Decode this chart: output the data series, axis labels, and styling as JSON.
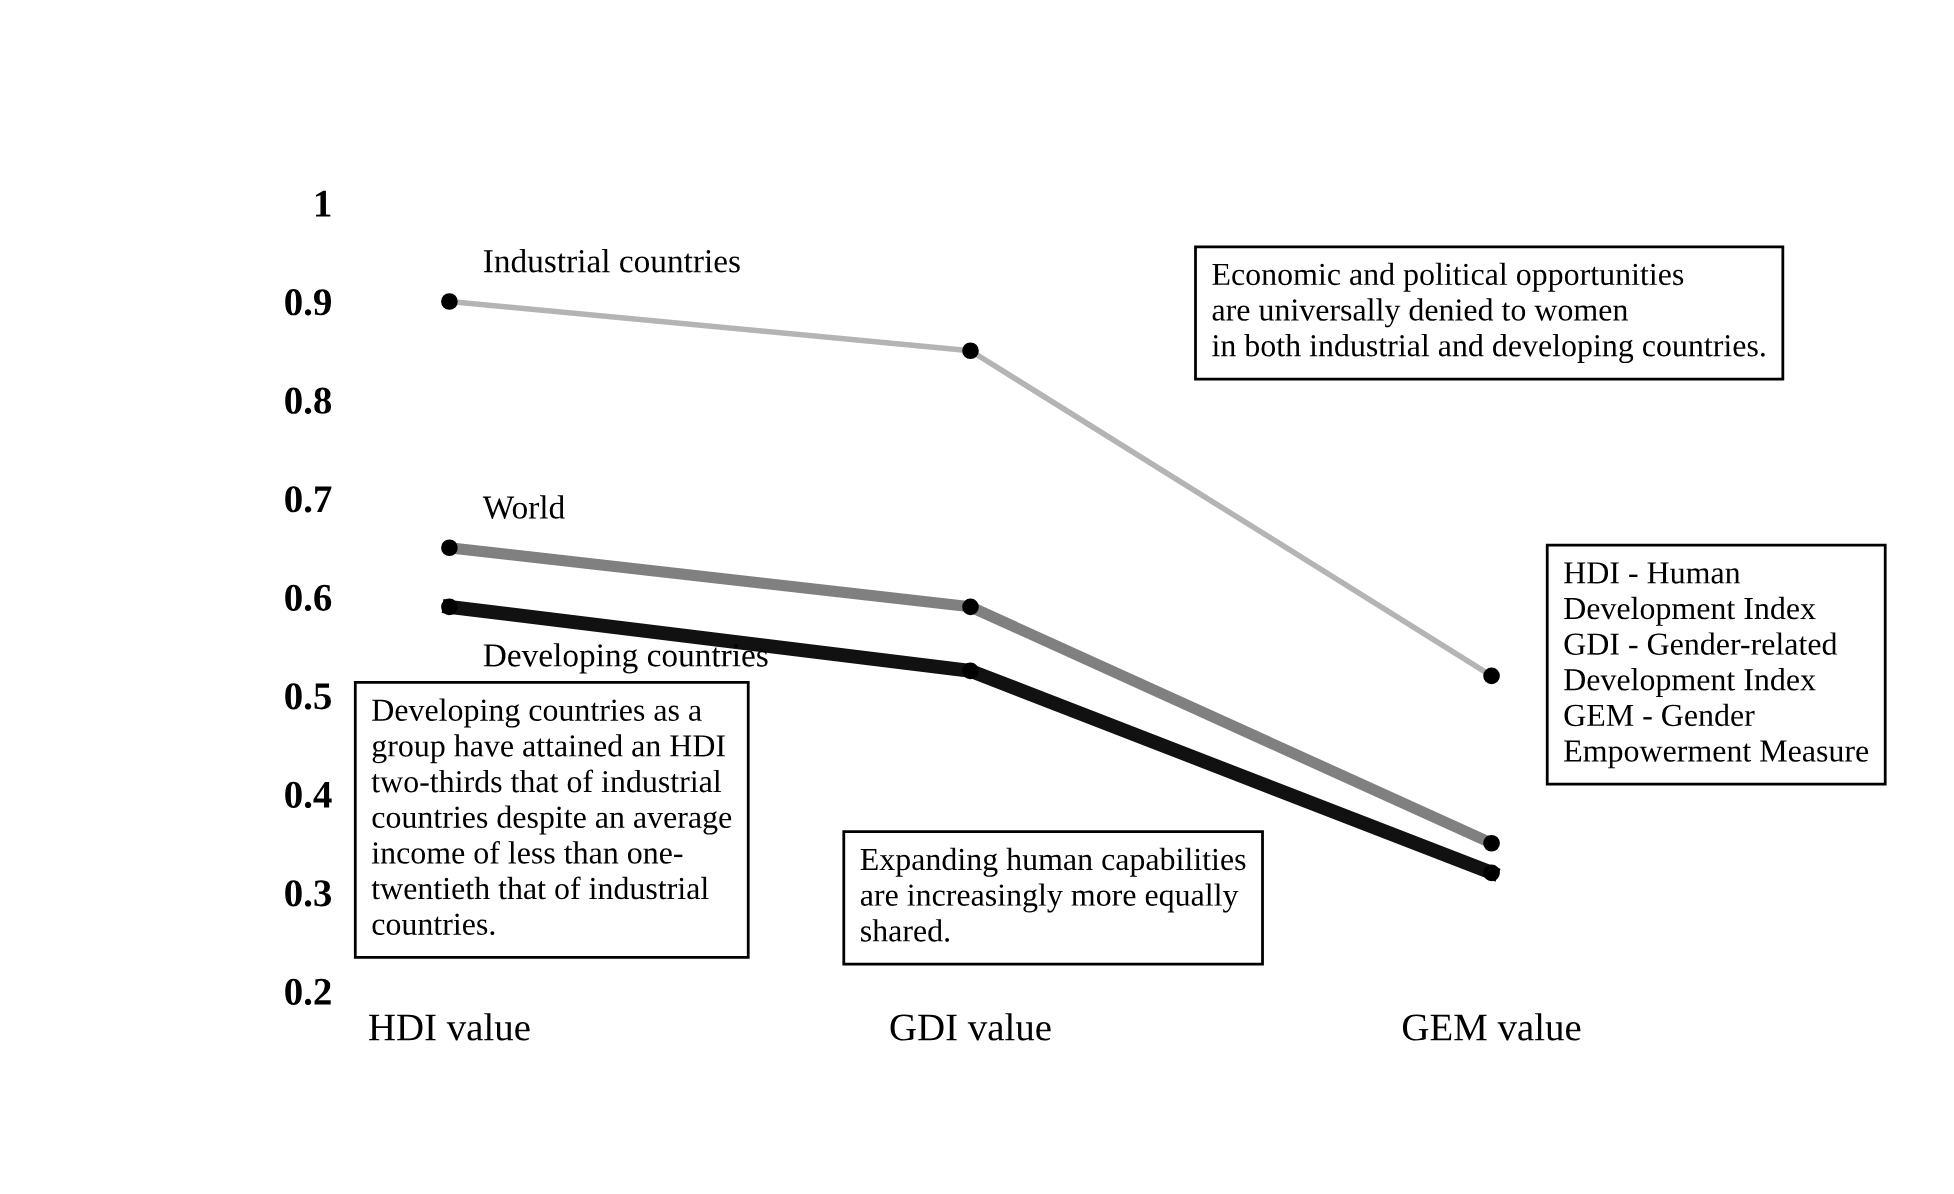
{
  "chart_data": {
    "type": "line",
    "categories": [
      "HDI value",
      "GDI value",
      "GEM value"
    ],
    "series": [
      {
        "name": "Industrial countries",
        "color": "#b4b4b4",
        "values": [
          0.9,
          0.85,
          0.52
        ]
      },
      {
        "name": "World",
        "color": "#808080",
        "values": [
          0.65,
          0.59,
          0.35
        ]
      },
      {
        "name": "Developing countries",
        "color": "#111111",
        "values": [
          0.59,
          0.525,
          0.32
        ]
      }
    ],
    "ylim": [
      0.2,
      1.0
    ],
    "yticks": [
      0.2,
      0.3,
      0.4,
      0.5,
      0.6,
      0.7,
      0.8,
      0.9,
      1
    ],
    "marker": "circle",
    "grid": false,
    "legend": false,
    "annotations": [
      "Economic and political opportunities\nare universally denied to women\nin both industrial and developing countries.",
      "HDI - Human\nDevelopment Index\nGDI - Gender-related\nDevelopment Index\nGEM - Gender\nEmpowerment Measure",
      "Developing countries as a\ngroup have attained an HDI\ntwo-thirds that of industrial\ncountries despite an average\nincome of less than one-\ntwentieth that of industrial\ncountries.",
      "Expanding human capabilities\nare increasingly more equally\nshared."
    ]
  }
}
